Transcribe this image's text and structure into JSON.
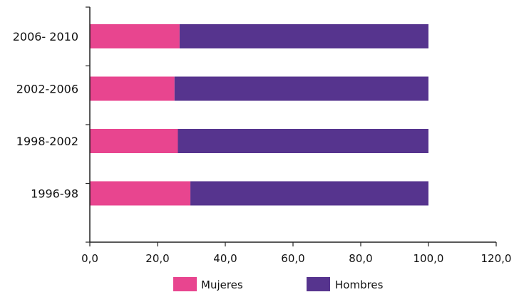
{
  "chart_data": {
    "type": "bar",
    "orientation": "horizontal",
    "stacked": true,
    "categories": [
      "2006- 2010",
      "2002-2006",
      "1998-2002",
      "1996-98"
    ],
    "series": [
      {
        "name": "Mujeres",
        "values": [
          26.5,
          25.0,
          26.0,
          29.7
        ],
        "color": "#e8458f"
      },
      {
        "name": "Hombres",
        "values": [
          73.5,
          75.0,
          74.0,
          70.3
        ],
        "color": "#56348e"
      }
    ],
    "x_ticks": [
      "0,0",
      "20,0",
      "40,0",
      "60,0",
      "80,0",
      "100,0",
      "120,0"
    ],
    "xlim": [
      0,
      120
    ],
    "grid": false,
    "legend_position": "bottom",
    "title": "",
    "xlabel": "",
    "ylabel": ""
  }
}
